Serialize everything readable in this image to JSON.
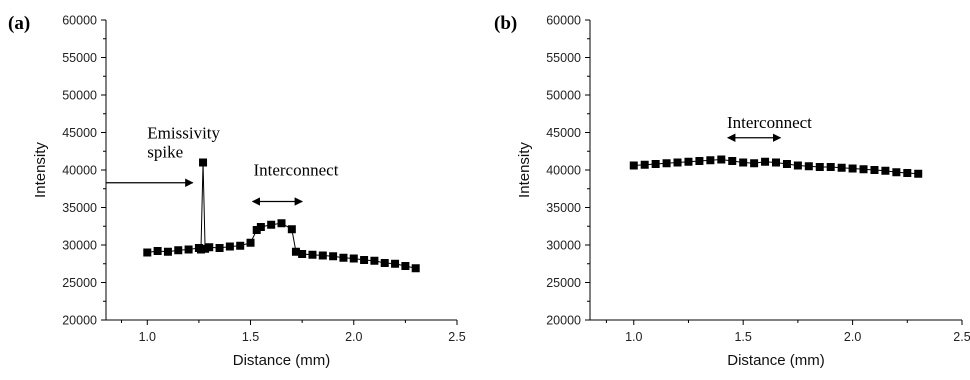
{
  "chart_data": [
    {
      "type": "scatter",
      "panel_label": "(a)",
      "xlabel": "Distance (mm)",
      "ylabel": "Intensity",
      "xlim": [
        0.8,
        2.5
      ],
      "ylim": [
        20000,
        60000
      ],
      "xticks": [
        1.0,
        1.5,
        2.0,
        2.5
      ],
      "xtick_labels": [
        "1.0",
        "1.5",
        "2.0",
        "2.5"
      ],
      "yticks": [
        20000,
        25000,
        30000,
        35000,
        40000,
        45000,
        50000,
        55000,
        60000
      ],
      "ytick_labels": [
        "20000",
        "25000",
        "30000",
        "35000",
        "40000",
        "45000",
        "50000",
        "55000",
        "60000"
      ],
      "series": [
        {
          "x": [
            1.0,
            1.05,
            1.1,
            1.15,
            1.2,
            1.25,
            1.26,
            1.27,
            1.28,
            1.3,
            1.35,
            1.4,
            1.45,
            1.5,
            1.53,
            1.55,
            1.6,
            1.65,
            1.7,
            1.72,
            1.75,
            1.8,
            1.85,
            1.9,
            1.95,
            2.0,
            2.05,
            2.1,
            2.15,
            2.2,
            2.25,
            2.3
          ],
          "y": [
            29000,
            29200,
            29100,
            29300,
            29400,
            29600,
            29400,
            41000,
            29500,
            29700,
            29600,
            29800,
            29900,
            30300,
            32000,
            32400,
            32700,
            32900,
            32100,
            29100,
            28800,
            28700,
            28600,
            28500,
            28300,
            28200,
            28000,
            27900,
            27600,
            27500,
            27200,
            26900
          ]
        }
      ],
      "annotations": [
        {
          "text": "Emissivity",
          "x": 1.0,
          "y": 44200
        },
        {
          "text": "spike",
          "x": 1.0,
          "y": 41700
        },
        {
          "text": "Interconnect",
          "x": 1.72,
          "y": 39300
        }
      ],
      "arrows": [
        {
          "type": "single",
          "x1": 0.8,
          "x2": 1.22,
          "y": 38300
        },
        {
          "type": "double",
          "x1": 1.51,
          "x2": 1.75,
          "y": 35800
        }
      ],
      "grid": false,
      "legend": "none"
    },
    {
      "type": "scatter",
      "panel_label": "(b)",
      "xlabel": "Distance (mm)",
      "ylabel": "Intensity",
      "xlim": [
        0.8,
        2.5
      ],
      "ylim": [
        20000,
        60000
      ],
      "xticks": [
        1.0,
        1.5,
        2.0,
        2.5
      ],
      "xtick_labels": [
        "1.0",
        "1.5",
        "2.0",
        "2.5"
      ],
      "yticks": [
        20000,
        25000,
        30000,
        35000,
        40000,
        45000,
        50000,
        55000,
        60000
      ],
      "ytick_labels": [
        "20000",
        "25000",
        "30000",
        "35000",
        "40000",
        "45000",
        "50000",
        "55000",
        "60000"
      ],
      "series": [
        {
          "x": [
            1.0,
            1.05,
            1.1,
            1.15,
            1.2,
            1.25,
            1.3,
            1.35,
            1.4,
            1.45,
            1.5,
            1.55,
            1.6,
            1.65,
            1.7,
            1.75,
            1.8,
            1.85,
            1.9,
            1.95,
            2.0,
            2.05,
            2.1,
            2.15,
            2.2,
            2.25,
            2.3
          ],
          "y": [
            40600,
            40700,
            40800,
            40900,
            41000,
            41100,
            41200,
            41300,
            41400,
            41200,
            41000,
            40900,
            41100,
            41000,
            40800,
            40600,
            40500,
            40400,
            40400,
            40300,
            40200,
            40100,
            40000,
            39900,
            39700,
            39600,
            39500
          ]
        }
      ],
      "annotations": [
        {
          "text": "Interconnect",
          "x": 1.62,
          "y": 45600
        }
      ],
      "arrows": [
        {
          "type": "double",
          "x1": 1.43,
          "x2": 1.67,
          "y": 44300
        }
      ],
      "grid": false,
      "legend": "none"
    }
  ]
}
